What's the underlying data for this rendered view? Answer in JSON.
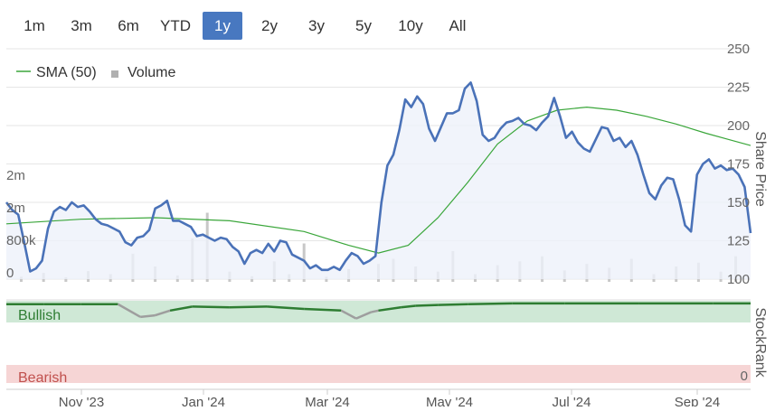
{
  "range_selector": {
    "options": [
      "1m",
      "3m",
      "6m",
      "YTD",
      "1y",
      "2y",
      "3y",
      "5y",
      "10y",
      "All"
    ],
    "selected": "1y"
  },
  "colors": {
    "price": "#4a72b8",
    "sma": "#3aa63a",
    "volume": "#c8c8c8",
    "bullish_band": "#cfe8d6",
    "bearish_band": "#f6d5d5",
    "stockrank_bullish": "#2e7d32",
    "stockrank_neutral": "#9e9e9e",
    "active_button": "#4878c0"
  },
  "chart_data": {
    "type": "line",
    "x_labels": [
      "Nov '23",
      "Jan '24",
      "Mar '24",
      "May '24",
      "Jul '24",
      "Sep '24"
    ],
    "price_axis": {
      "label": "Share Price",
      "ticks": [
        100,
        125,
        150,
        175,
        200,
        225,
        250
      ],
      "ylim": [
        100,
        250
      ]
    },
    "volume_axis": {
      "ticks": [
        "0",
        "800k",
        "2m",
        "2m"
      ]
    },
    "stockrank_axis": {
      "label": "StockRank",
      "ticks": [
        "0"
      ]
    },
    "legend": [
      {
        "name": "SMA (50)",
        "marker": "line"
      },
      {
        "name": "Volume",
        "marker": "square"
      }
    ],
    "bands": {
      "bullish": "Bullish",
      "bearish": "Bearish"
    },
    "series": [
      {
        "name": "Share Price",
        "t": [
          0,
          0.008,
          0.016,
          0.024,
          0.032,
          0.04,
          0.048,
          0.056,
          0.064,
          0.072,
          0.08,
          0.088,
          0.096,
          0.104,
          0.112,
          0.12,
          0.128,
          0.136,
          0.144,
          0.152,
          0.16,
          0.168,
          0.176,
          0.184,
          0.192,
          0.2,
          0.208,
          0.216,
          0.224,
          0.232,
          0.24,
          0.248,
          0.256,
          0.264,
          0.272,
          0.28,
          0.288,
          0.296,
          0.304,
          0.312,
          0.32,
          0.328,
          0.336,
          0.344,
          0.352,
          0.36,
          0.368,
          0.376,
          0.384,
          0.392,
          0.4,
          0.408,
          0.416,
          0.424,
          0.432,
          0.44,
          0.448,
          0.456,
          0.464,
          0.472,
          0.48,
          0.488,
          0.496,
          0.504,
          0.512,
          0.52,
          0.528,
          0.536,
          0.544,
          0.552,
          0.56,
          0.568,
          0.576,
          0.584,
          0.592,
          0.6,
          0.608,
          0.616,
          0.624,
          0.632,
          0.64,
          0.648,
          0.656,
          0.664,
          0.672,
          0.68,
          0.688,
          0.696,
          0.704,
          0.712,
          0.72,
          0.728,
          0.736,
          0.744,
          0.752,
          0.76,
          0.768,
          0.776,
          0.784,
          0.792,
          0.8,
          0.808,
          0.816,
          0.824,
          0.832,
          0.84,
          0.848,
          0.856,
          0.864,
          0.872,
          0.88,
          0.888,
          0.896,
          0.904,
          0.912,
          0.92,
          0.928,
          0.936,
          0.944,
          0.952,
          0.96,
          0.968,
          0.976,
          0.984,
          0.992,
          1.0
        ],
        "values": [
          150,
          145,
          142,
          124,
          105,
          107,
          112,
          133,
          144,
          147,
          145,
          150,
          147,
          148,
          144,
          139,
          136,
          135,
          133,
          131,
          124,
          122,
          127,
          128,
          132,
          146,
          148,
          151,
          138,
          138,
          136,
          134,
          128,
          129,
          127,
          125,
          127,
          126,
          121,
          118,
          110,
          117,
          119,
          117,
          123,
          118,
          125,
          124,
          116,
          114,
          112,
          107,
          109,
          106,
          106,
          108,
          106,
          112,
          117,
          115,
          110,
          112,
          115,
          150,
          174,
          181,
          197,
          217,
          212,
          219,
          214,
          198,
          190,
          199,
          208,
          208,
          210,
          224,
          228,
          216,
          194,
          190,
          192,
          198,
          202,
          203,
          205,
          201,
          200,
          197,
          202,
          206,
          218,
          206,
          192,
          196,
          189,
          185,
          183,
          191,
          199,
          198,
          190,
          192,
          186,
          190,
          181,
          168,
          156,
          152,
          161,
          166,
          165,
          152,
          135,
          131,
          168,
          175,
          178,
          172,
          174,
          171,
          172,
          168,
          160,
          130
        ],
        "color": "#4a72b8"
      },
      {
        "name": "SMA (50)",
        "t": [
          0,
          0.1,
          0.2,
          0.3,
          0.4,
          0.46,
          0.5,
          0.54,
          0.58,
          0.62,
          0.66,
          0.7,
          0.74,
          0.78,
          0.82,
          0.86,
          0.9,
          0.94,
          0.97,
          1.0
        ],
        "values": [
          136,
          139,
          140,
          138,
          131,
          122,
          117,
          122,
          140,
          163,
          188,
          203,
          210,
          212,
          210,
          206,
          201,
          195,
          191,
          187
        ],
        "color": "#3aa63a"
      },
      {
        "name": "Volume",
        "t": [
          0.02,
          0.05,
          0.08,
          0.11,
          0.14,
          0.17,
          0.2,
          0.23,
          0.25,
          0.27,
          0.3,
          0.33,
          0.36,
          0.38,
          0.4,
          0.43,
          0.46,
          0.5,
          0.52,
          0.55,
          0.58,
          0.6,
          0.63,
          0.66,
          0.69,
          0.72,
          0.75,
          0.78,
          0.81,
          0.84,
          0.87,
          0.9,
          0.93,
          0.96,
          0.98
        ],
        "values": [
          200,
          350,
          180,
          420,
          300,
          1100,
          600,
          250,
          1700,
          2700,
          400,
          220,
          800,
          300,
          1500,
          200,
          500,
          700,
          900,
          600,
          400,
          1200,
          300,
          650,
          800,
          1000,
          450,
          700,
          550,
          900,
          300,
          600,
          750,
          400,
          1000
        ]
      },
      {
        "name": "StockRank",
        "t": [
          0,
          0.05,
          0.1,
          0.15,
          0.18,
          0.2,
          0.22,
          0.25,
          0.3,
          0.35,
          0.4,
          0.45,
          0.47,
          0.49,
          0.5,
          0.53,
          0.55,
          0.58,
          0.62,
          0.68,
          0.75,
          0.85,
          0.95,
          1.0
        ],
        "values": [
          98,
          98,
          98,
          98,
          82,
          84,
          90,
          95,
          94,
          95,
          92,
          90,
          80,
          88,
          90,
          94,
          96,
          97,
          98,
          99,
          99,
          99,
          99,
          99
        ],
        "color": "#2e7d32"
      }
    ]
  }
}
